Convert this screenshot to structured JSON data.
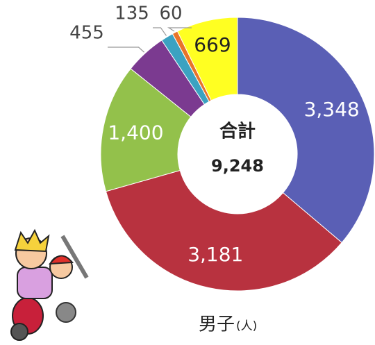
{
  "chart_data": {
    "type": "donut",
    "categories": [
      null,
      null,
      null,
      null,
      null,
      null,
      null
    ],
    "values": [
      3348,
      3181,
      1400,
      455,
      135,
      60,
      669
    ],
    "value_labels": [
      "3,348",
      "3,181",
      "1,400",
      "455",
      "135",
      "60",
      "669"
    ],
    "colors": [
      "#5a5fb5",
      "#b8323f",
      "#93c14b",
      "#7b3a90",
      "#3ba2c1",
      "#e8742a",
      "#ffff22"
    ],
    "center_title": "合計",
    "center_label": "9,248",
    "caption": "男子",
    "unit": "(人)"
  }
}
